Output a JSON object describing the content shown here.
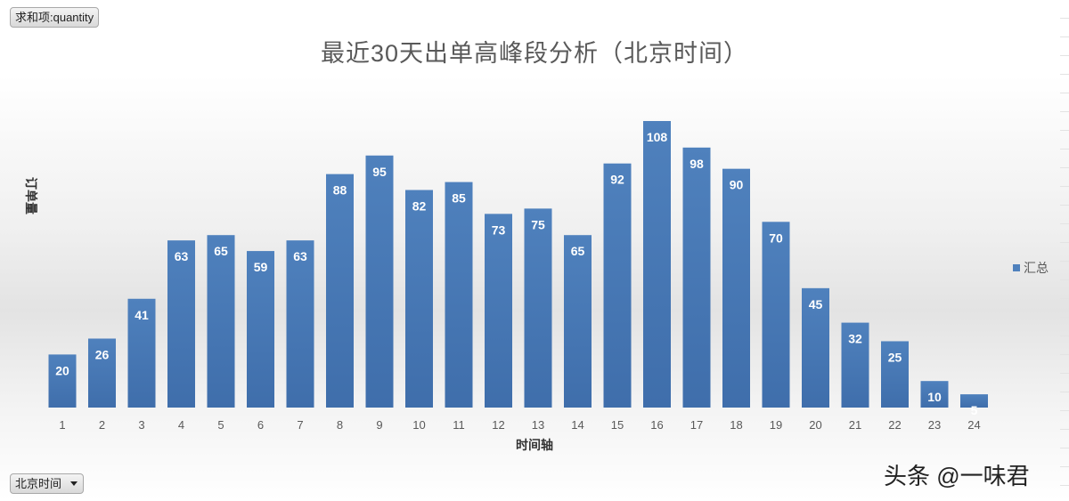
{
  "pivot": {
    "value_field": "求和项:quantity",
    "axis_field": "北京时间"
  },
  "watermark": "头条 @一味君",
  "colors": {
    "bar": "#4f81bd",
    "bar_dark": "#3a68a8",
    "label": "#ffffff",
    "tick": "#595959"
  },
  "chart_data": {
    "type": "bar",
    "title": "最近30天出单高峰段分析（北京时间）",
    "xlabel": "时间轴",
    "ylabel": "订单量",
    "legend": {
      "entries": [
        "汇总"
      ],
      "position": "right"
    },
    "categories": [
      "1",
      "2",
      "3",
      "4",
      "5",
      "6",
      "7",
      "8",
      "9",
      "10",
      "11",
      "12",
      "13",
      "14",
      "15",
      "16",
      "17",
      "18",
      "19",
      "20",
      "21",
      "22",
      "23",
      "24"
    ],
    "series": [
      {
        "name": "汇总",
        "values": [
          20,
          26,
          41,
          63,
          65,
          59,
          63,
          88,
          95,
          82,
          85,
          73,
          75,
          65,
          92,
          108,
          98,
          90,
          70,
          45,
          32,
          25,
          10,
          5
        ]
      }
    ],
    "ylim": [
      0,
      110
    ],
    "grid": false,
    "data_labels": true
  }
}
